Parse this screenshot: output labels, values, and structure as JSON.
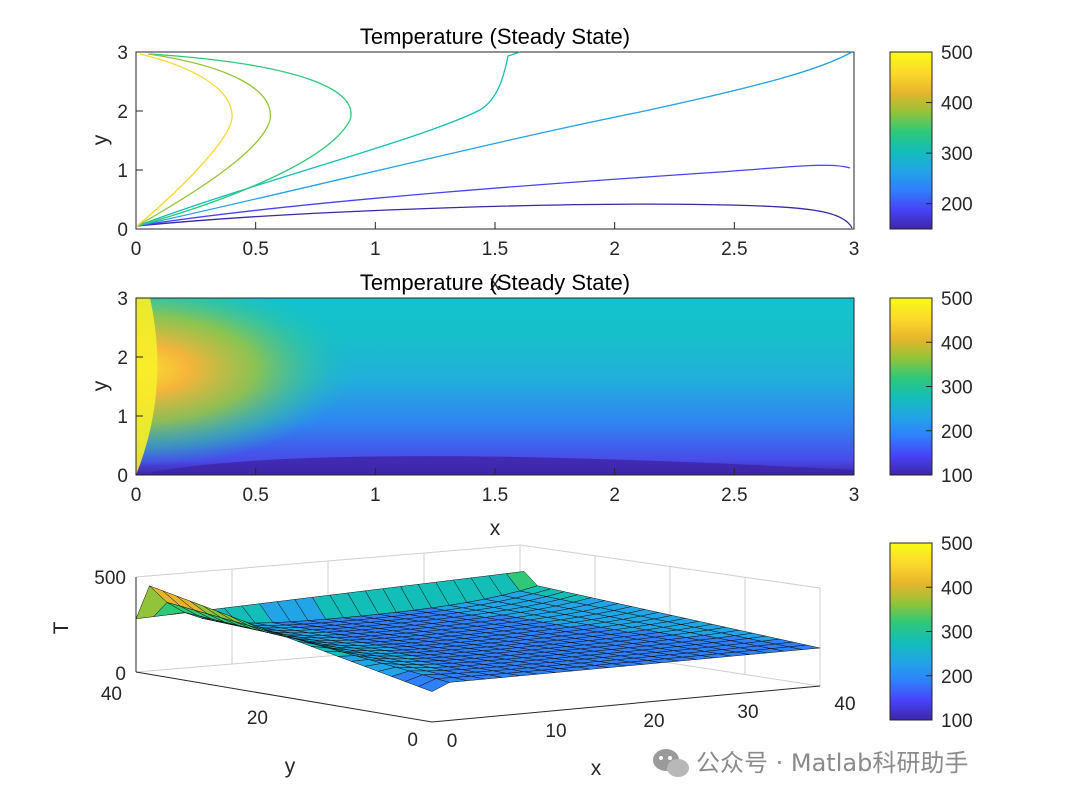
{
  "watermark": "公众号 · Matlab科研助手",
  "colormap": [
    "#3e26a8",
    "#4743f8",
    "#2f80fc",
    "#22a5e6",
    "#13beb8",
    "#2fc878",
    "#93c338",
    "#e6b52c",
    "#fcd82d",
    "#f9fb15"
  ],
  "chart_data": [
    {
      "type": "contour",
      "title": "Temperature (Steady State)",
      "xlabel": "x",
      "ylabel": "y",
      "xlim": [
        0,
        3
      ],
      "ylim": [
        0,
        3
      ],
      "xticks": [
        "0",
        "0.5",
        "1",
        "1.5",
        "2",
        "2.5",
        "3"
      ],
      "yticks": [
        "0",
        "1",
        "2",
        "3"
      ],
      "contour_levels": [
        150,
        200,
        250,
        300,
        350,
        400,
        450
      ],
      "colorbar": {
        "limits": [
          150,
          500
        ],
        "ticks": [
          "200",
          "300",
          "400",
          "500"
        ]
      }
    },
    {
      "type": "heatmap",
      "title": "Temperature (Steady State)",
      "xlabel": "x",
      "ylabel": "y",
      "xlim": [
        0,
        3
      ],
      "ylim": [
        0,
        3
      ],
      "xticks": [
        "0",
        "0.5",
        "1",
        "1.5",
        "2",
        "2.5",
        "3"
      ],
      "yticks": [
        "0",
        "1",
        "2",
        "3"
      ],
      "colorbar": {
        "limits": [
          100,
          500
        ],
        "ticks": [
          "100",
          "200",
          "300",
          "400",
          "500"
        ]
      }
    },
    {
      "type": "surface",
      "xlabel": "x",
      "ylabel": "y",
      "zlabel": "T",
      "xticks": [
        "0",
        "10",
        "20",
        "30",
        "40"
      ],
      "yticks": [
        "0",
        "20",
        "40"
      ],
      "zticks": [
        "0",
        "500"
      ],
      "zlim": [
        0,
        500
      ],
      "colorbar": {
        "limits": [
          100,
          500
        ],
        "ticks": [
          "100",
          "200",
          "300",
          "400",
          "500"
        ]
      }
    }
  ]
}
